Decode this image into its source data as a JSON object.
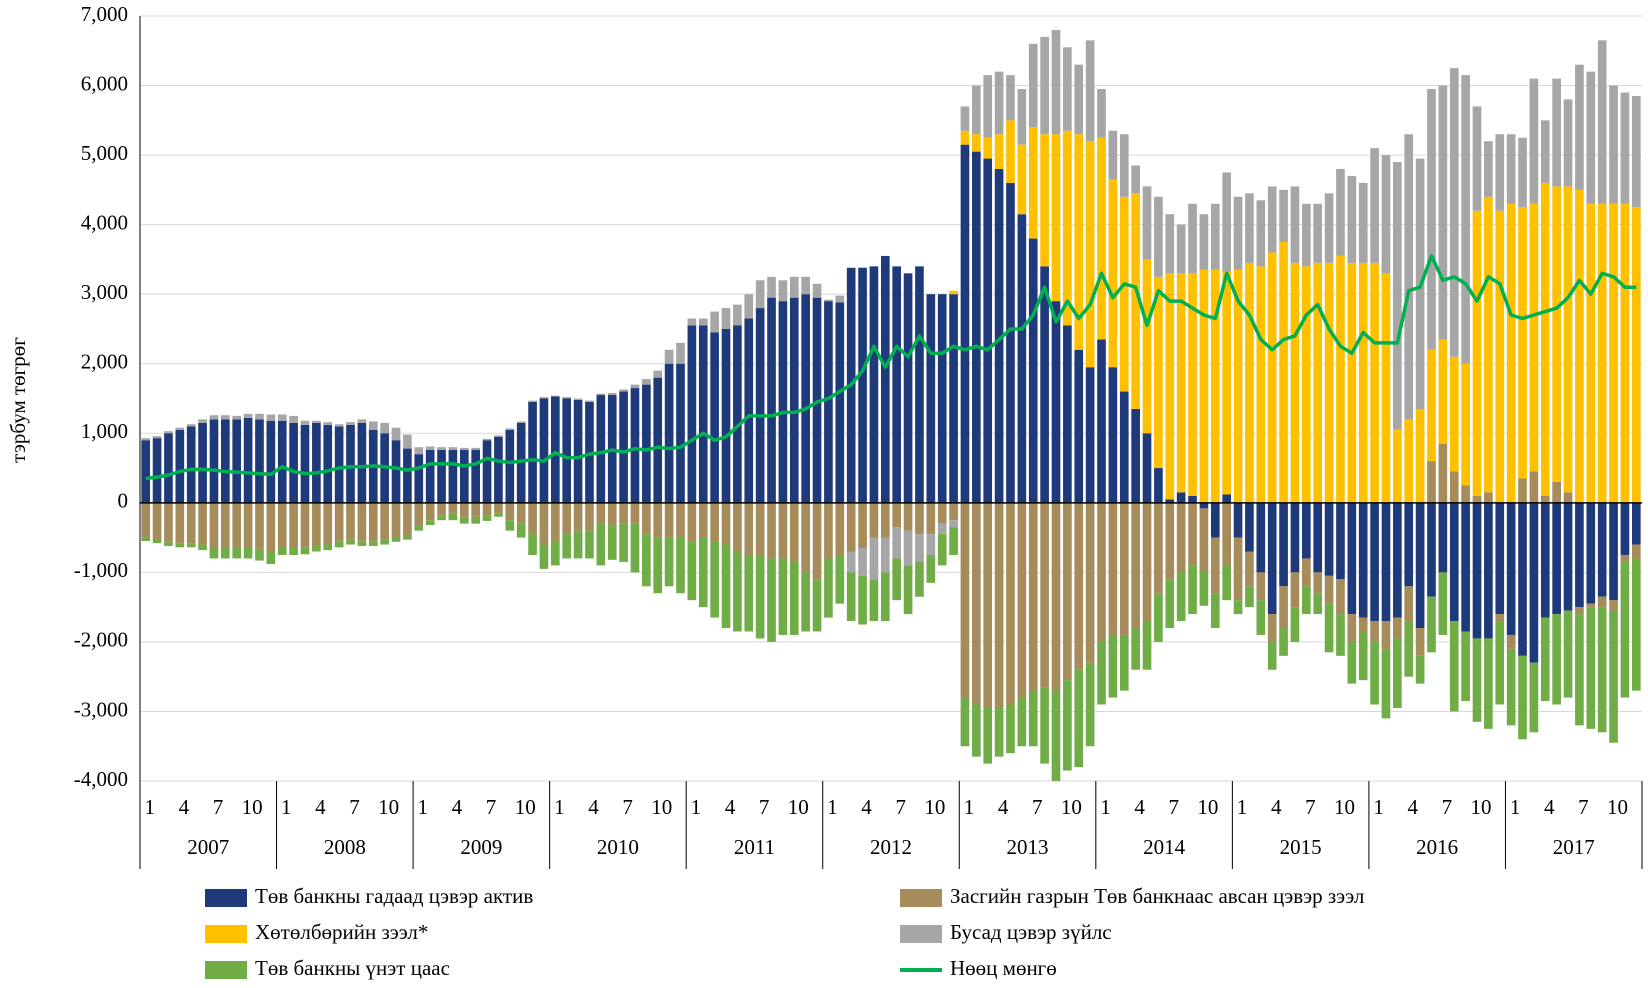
{
  "chart_data": {
    "type": "bar",
    "stacked": true,
    "y_label": "тэрбум төгрөг",
    "ylim": [
      -4000,
      7000
    ],
    "yticks": [
      {
        "value": -4000,
        "label": "-4,000"
      },
      {
        "value": -3000,
        "label": "-3,000"
      },
      {
        "value": -2000,
        "label": "-2,000"
      },
      {
        "value": -1000,
        "label": "-1,000"
      },
      0,
      {
        "value": 1000,
        "label": "1,000"
      },
      {
        "value": 2000,
        "label": "2,000"
      },
      {
        "value": 3000,
        "label": "3,000"
      },
      {
        "value": 4000,
        "label": "4,000"
      },
      {
        "value": 5000,
        "label": "5,000"
      },
      {
        "value": 6000,
        "label": "6,000"
      },
      {
        "value": 7000,
        "label": "7,000"
      }
    ],
    "grid": true,
    "categories": [
      "1",
      null,
      null,
      "4",
      null,
      null,
      "7",
      null,
      null,
      "10",
      null,
      null,
      "1",
      null,
      null,
      "4",
      null,
      null,
      "7",
      null,
      null,
      "10",
      null,
      null,
      "1",
      null,
      null,
      "4",
      null,
      null,
      "7",
      null,
      null,
      "10",
      null,
      null,
      "1",
      null,
      null,
      "4",
      null,
      null,
      "7",
      null,
      null,
      "10",
      null,
      null,
      "1",
      null,
      null,
      "4",
      null,
      null,
      "7",
      null,
      null,
      "10",
      null,
      null,
      "1",
      null,
      null,
      "4",
      null,
      null,
      "7",
      null,
      null,
      "10",
      null,
      null,
      "1",
      null,
      null,
      "4",
      null,
      null,
      "7",
      null,
      null,
      "10",
      null,
      null,
      "1",
      null,
      null,
      "4",
      null,
      null,
      "7",
      null,
      null,
      "10",
      null,
      null,
      "1",
      null,
      null,
      "4",
      null,
      null,
      "7",
      null,
      null,
      "10",
      null,
      null,
      "1",
      null,
      null,
      "4",
      null,
      null,
      "7",
      null,
      null,
      "10",
      null,
      null,
      "1",
      null,
      null,
      "4",
      null,
      null,
      "7",
      null,
      null,
      "10",
      null,
      null
    ],
    "years": [
      "2007",
      "2008",
      "2009",
      "2010",
      "2011",
      "2012",
      "2013",
      "2014",
      "2015",
      "2016",
      "2017"
    ],
    "series": [
      {
        "name": "Төв банкны гадаад цэвэр актив",
        "color": "#1f3a7a",
        "values": [
          900,
          930,
          1000,
          1050,
          1100,
          1150,
          1200,
          1200,
          1200,
          1220,
          1200,
          1180,
          1180,
          1150,
          1120,
          1150,
          1120,
          1100,
          1120,
          1150,
          1050,
          1000,
          900,
          780,
          700,
          760,
          760,
          760,
          760,
          760,
          900,
          950,
          1050,
          1150,
          1450,
          1500,
          1530,
          1500,
          1480,
          1450,
          1550,
          1550,
          1600,
          1650,
          1700,
          1800,
          2000,
          2000,
          2550,
          2550,
          2450,
          2500,
          2550,
          2650,
          2800,
          2950,
          2900,
          2950,
          3000,
          2950,
          2900,
          2880,
          3380,
          3380,
          3400,
          3550,
          3400,
          3300,
          3400,
          3000,
          3000,
          3000,
          5150,
          5050,
          4950,
          4800,
          4600,
          4150,
          3800,
          3400,
          2900,
          2550,
          2200,
          1950,
          2350,
          1950,
          1600,
          1350,
          1000,
          500,
          50,
          150,
          100,
          -80,
          -500,
          120,
          -500,
          -700,
          -1000,
          -1600,
          -1200,
          -1000,
          -800,
          -1000,
          -1050,
          -1100,
          -1600,
          -1650,
          -1700,
          -1700,
          -1650,
          -1200,
          -1800,
          -1350,
          -1000,
          -1700,
          -1850,
          -1950,
          -1950,
          -1600,
          -1900,
          -2200,
          -2300,
          -1650,
          -1600,
          -1550,
          -1500,
          -1450,
          -1350,
          -1400,
          -750,
          -600
        ]
      },
      {
        "name": "Засгийн газрын Төв банкнаас авсан цэвэр зээл",
        "color": "#a68b5b",
        "values": [
          -500,
          -520,
          -560,
          -580,
          -580,
          -600,
          -650,
          -650,
          -650,
          -650,
          -660,
          -700,
          -650,
          -650,
          -640,
          -620,
          -600,
          -560,
          -530,
          -560,
          -560,
          -530,
          -500,
          -470,
          -320,
          -250,
          -180,
          -150,
          -200,
          -200,
          -180,
          -150,
          -250,
          -300,
          -450,
          -600,
          -550,
          -450,
          -400,
          -400,
          -300,
          -320,
          -300,
          -300,
          -450,
          -500,
          -500,
          -500,
          -550,
          -500,
          -550,
          -600,
          -700,
          -750,
          -750,
          -800,
          -800,
          -850,
          -1000,
          -1100,
          -800,
          -750,
          -700,
          -650,
          -500,
          -500,
          -350,
          -400,
          -450,
          -450,
          -300,
          -250,
          -2800,
          -2900,
          -2950,
          -2950,
          -2900,
          -2800,
          -2700,
          -2650,
          -2700,
          -2550,
          -2400,
          -2300,
          -2000,
          -1900,
          -1900,
          -1800,
          -1700,
          -1300,
          -1100,
          -1000,
          -900,
          -900,
          -800,
          -900,
          -900,
          -500,
          -400,
          -400,
          -600,
          -500,
          -400,
          -300,
          -400,
          -500,
          -400,
          -200,
          -300,
          -400,
          -300,
          -500,
          -400,
          600,
          850,
          450,
          250,
          100,
          150,
          -100,
          -200,
          350,
          450,
          100,
          300,
          150,
          -100,
          -50,
          -150,
          -150,
          -100,
          -200
        ]
      },
      {
        "name": "Хөтөлбөрийн зээл*",
        "color": "#ffc000",
        "values": [
          0,
          0,
          0,
          0,
          0,
          0,
          0,
          0,
          0,
          0,
          0,
          0,
          0,
          0,
          0,
          0,
          0,
          0,
          0,
          0,
          0,
          0,
          0,
          0,
          0,
          0,
          0,
          0,
          0,
          0,
          0,
          0,
          0,
          0,
          0,
          0,
          0,
          0,
          0,
          0,
          0,
          0,
          0,
          0,
          0,
          0,
          0,
          0,
          0,
          0,
          0,
          0,
          0,
          0,
          0,
          0,
          0,
          0,
          0,
          0,
          0,
          0,
          0,
          0,
          0,
          0,
          0,
          0,
          0,
          0,
          0,
          50,
          200,
          250,
          300,
          500,
          900,
          1000,
          1600,
          1900,
          2400,
          2800,
          3100,
          3250,
          2900,
          2700,
          2800,
          3100,
          2500,
          2750,
          3250,
          3150,
          3200,
          3350,
          3350,
          3200,
          3350,
          3450,
          3400,
          3600,
          3750,
          3450,
          3400,
          3450,
          3450,
          3550,
          3450,
          3450,
          3450,
          3300,
          1050,
          1200,
          1350,
          1600,
          1500,
          1650,
          1750,
          4100,
          4250,
          4200,
          4300,
          3900,
          3850,
          4500,
          4250,
          4400,
          4500,
          4300,
          4300,
          4300,
          4300,
          4250
        ]
      },
      {
        "name": "Бусад цэвэр зүйлс",
        "color": "#a6a6a6",
        "values": [
          30,
          30,
          30,
          30,
          30,
          50,
          60,
          60,
          50,
          60,
          80,
          90,
          90,
          100,
          60,
          30,
          40,
          30,
          40,
          50,
          120,
          150,
          180,
          200,
          100,
          50,
          40,
          40,
          30,
          30,
          20,
          20,
          20,
          20,
          20,
          20,
          10,
          20,
          20,
          20,
          20,
          30,
          30,
          50,
          80,
          100,
          200,
          300,
          100,
          100,
          300,
          300,
          300,
          350,
          400,
          300,
          300,
          300,
          250,
          200,
          20,
          100,
          -300,
          -400,
          -600,
          -500,
          -450,
          -500,
          -400,
          -300,
          -150,
          -100,
          350,
          700,
          900,
          900,
          650,
          800,
          1200,
          1400,
          1500,
          1200,
          1000,
          1450,
          700,
          700,
          900,
          400,
          1050,
          1150,
          850,
          700,
          1000,
          800,
          950,
          1430,
          1050,
          1000,
          950,
          950,
          750,
          1100,
          900,
          850,
          1000,
          1250,
          1250,
          1150,
          1650,
          1700,
          3850,
          4100,
          3600,
          3750,
          3650,
          4150,
          4150,
          1500,
          800,
          1100,
          1000,
          1000,
          1800,
          900,
          1550,
          1250,
          1800,
          1900,
          2350,
          1700,
          1600,
          1600
        ]
      },
      {
        "name": "Төв банкны үнэт цаас",
        "color": "#70ad47",
        "values": [
          -50,
          -60,
          -60,
          -60,
          -60,
          -80,
          -150,
          -150,
          -150,
          -150,
          -170,
          -180,
          -100,
          -100,
          -100,
          -80,
          -80,
          -80,
          -70,
          -60,
          -60,
          -70,
          -60,
          -60,
          -80,
          -70,
          -70,
          -100,
          -100,
          -100,
          -80,
          -50,
          -150,
          -200,
          -300,
          -350,
          -350,
          -350,
          -400,
          -400,
          -600,
          -500,
          -550,
          -700,
          -750,
          -800,
          -700,
          -800,
          -850,
          -1000,
          -1100,
          -1200,
          -1150,
          -1100,
          -1200,
          -1200,
          -1100,
          -1050,
          -850,
          -750,
          -850,
          -700,
          -700,
          -700,
          -600,
          -700,
          -600,
          -700,
          -500,
          -400,
          -450,
          -400,
          -700,
          -750,
          -800,
          -700,
          -700,
          -700,
          -800,
          -1100,
          -1300,
          -1300,
          -1400,
          -1200,
          -900,
          -900,
          -800,
          -600,
          -700,
          -700,
          -700,
          -700,
          -700,
          -500,
          -500,
          -500,
          -200,
          -300,
          -500,
          -400,
          -400,
          -500,
          -400,
          -300,
          -700,
          -600,
          -600,
          -700,
          -900,
          -1000,
          -1000,
          -800,
          -400,
          -800,
          -900,
          -1300,
          -1000,
          -1200,
          -1300,
          -1200,
          -1100,
          -1200,
          -1000,
          -1200,
          -1300,
          -1250,
          -1600,
          -1750,
          -1800,
          -1900,
          -1950,
          -1900
        ]
      }
    ],
    "line": {
      "name": "Нөөц мөнгө",
      "color": "#00b050",
      "values": [
        350,
        370,
        400,
        450,
        480,
        480,
        470,
        450,
        440,
        430,
        420,
        410,
        520,
        450,
        420,
        430,
        460,
        500,
        520,
        520,
        530,
        520,
        500,
        470,
        500,
        560,
        560,
        560,
        530,
        560,
        640,
        600,
        580,
        600,
        620,
        600,
        720,
        650,
        650,
        700,
        720,
        760,
        730,
        780,
        760,
        800,
        780,
        800,
        900,
        1000,
        900,
        950,
        1100,
        1250,
        1250,
        1250,
        1300,
        1300,
        1350,
        1450,
        1500,
        1600,
        1700,
        1900,
        2250,
        1950,
        2250,
        2100,
        2400,
        2150,
        2150,
        2250,
        2200,
        2250,
        2200,
        2350,
        2500,
        2500,
        2700,
        3100,
        2600,
        2900,
        2650,
        2850,
        3300,
        2950,
        3150,
        3100,
        2550,
        3050,
        2900,
        2900,
        2800,
        2700,
        2650,
        3300,
        2900,
        2700,
        2350,
        2200,
        2350,
        2400,
        2700,
        2850,
        2500,
        2250,
        2150,
        2450,
        2300,
        2300,
        2300,
        3050,
        3100,
        3550,
        3200,
        3250,
        3150,
        2900,
        3250,
        3150,
        2700,
        2650,
        2700,
        2750,
        2800,
        2950,
        3200,
        3000,
        3300,
        3250,
        3100,
        3100
      ]
    }
  }
}
